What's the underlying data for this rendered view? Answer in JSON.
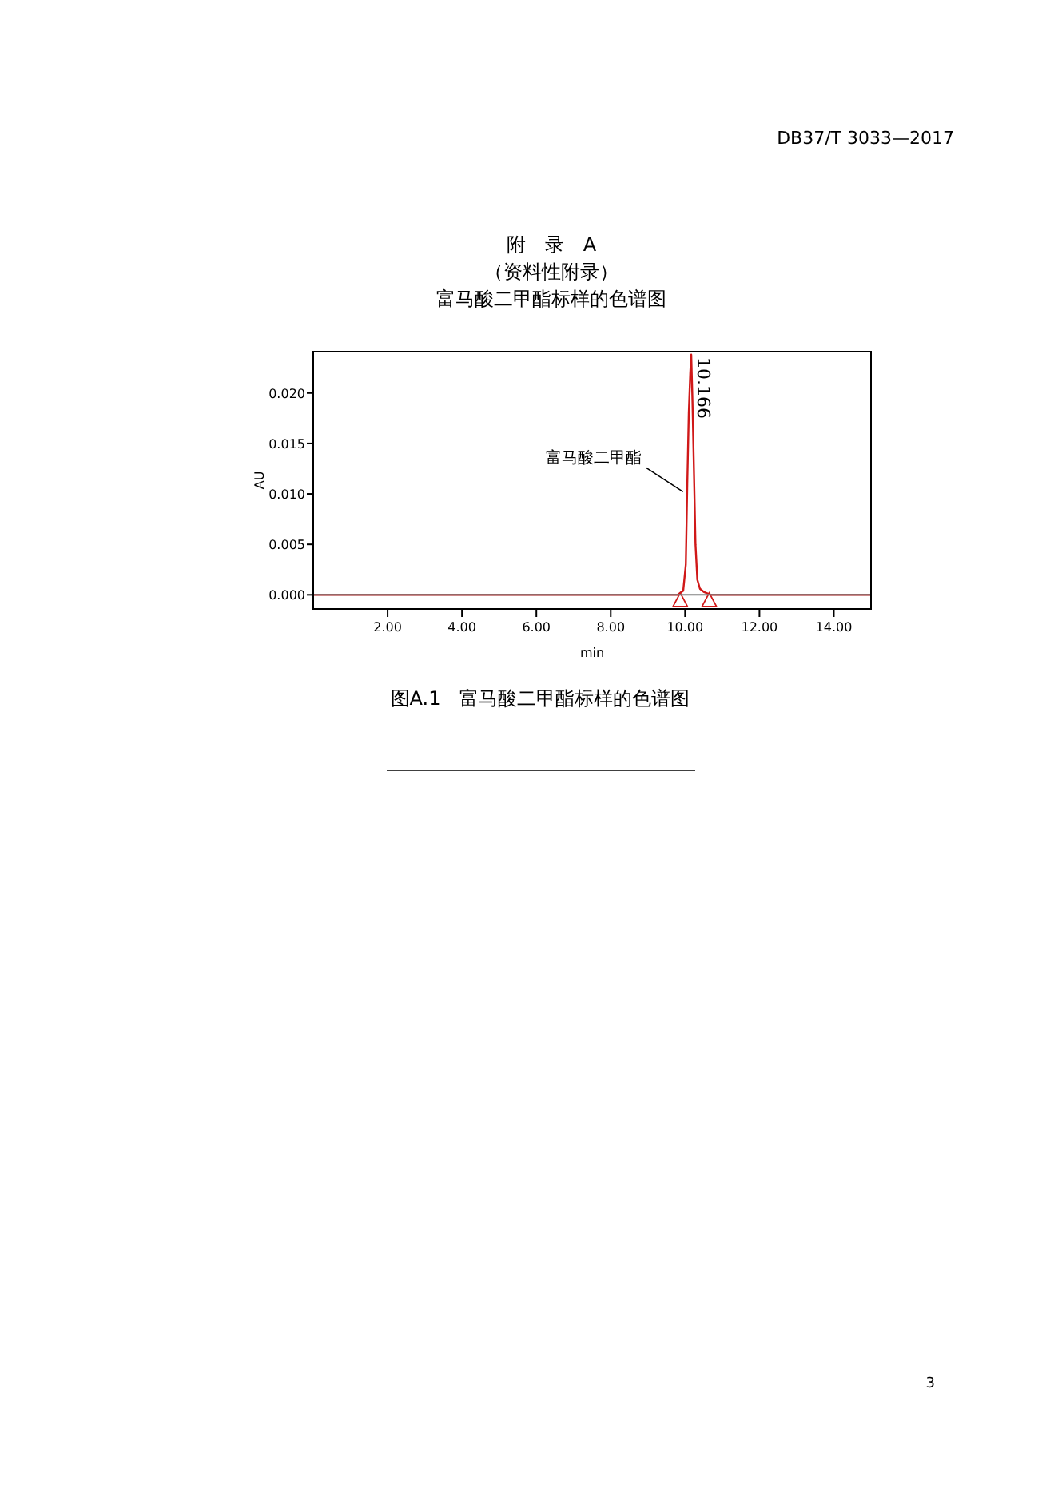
{
  "chart_data": {
    "type": "line",
    "title": "附　录　A",
    "subtitle": "（资料性附录）",
    "xlabel": "min",
    "ylabel": "AU",
    "xlim": [
      0,
      15
    ],
    "ylim": [
      -0.0014,
      0.0241
    ],
    "xticks": [
      {
        "value": 2,
        "label": "2.00"
      },
      {
        "value": 4,
        "label": "4.00"
      },
      {
        "value": 6,
        "label": "6.00"
      },
      {
        "value": 8,
        "label": "8.00"
      },
      {
        "value": 10,
        "label": "10.00"
      },
      {
        "value": 12,
        "label": "12.00"
      },
      {
        "value": 14,
        "label": "14.00"
      }
    ],
    "yticks": [
      {
        "value": 0,
        "label": "0.000"
      },
      {
        "value": 0.005,
        "label": "0.005"
      },
      {
        "value": 0.01,
        "label": "0.010"
      },
      {
        "value": 0.015,
        "label": "0.015"
      },
      {
        "value": 0.02,
        "label": "0.020"
      }
    ],
    "grid": false,
    "series": [
      {
        "color": "#d01818",
        "x": [
          0,
          9.8,
          9.95,
          10.02,
          10.06,
          10.1,
          10.14,
          10.166,
          10.2,
          10.24,
          10.28,
          10.33,
          10.4,
          10.5,
          10.7,
          15
        ],
        "values": [
          0,
          0,
          0.0004,
          0.003,
          0.011,
          0.018,
          0.022,
          0.0238,
          0.019,
          0.012,
          0.005,
          0.0015,
          0.0006,
          0.0003,
          0,
          0
        ]
      },
      {
        "type": "scatter",
        "marker": "triangle",
        "color": "#d01818",
        "x": [
          9.87,
          10.65
        ],
        "values": [
          -0.0006,
          -0.0006
        ]
      }
    ],
    "ref_lines": [
      {
        "axis": "y",
        "value": 0,
        "color": "#808080"
      }
    ],
    "annotations": [
      {
        "text": "10.166",
        "x": 10.166,
        "y": 0.0205
      },
      {
        "text": "富马酸二甲酯",
        "x": 10.03,
        "y": 0.0099
      },
      "富马酸二甲酯标样的色谱图",
      "图A.1　富马酸二甲酯标样的色谱图",
      "DB37/T 3033—2017",
      "3"
    ]
  }
}
